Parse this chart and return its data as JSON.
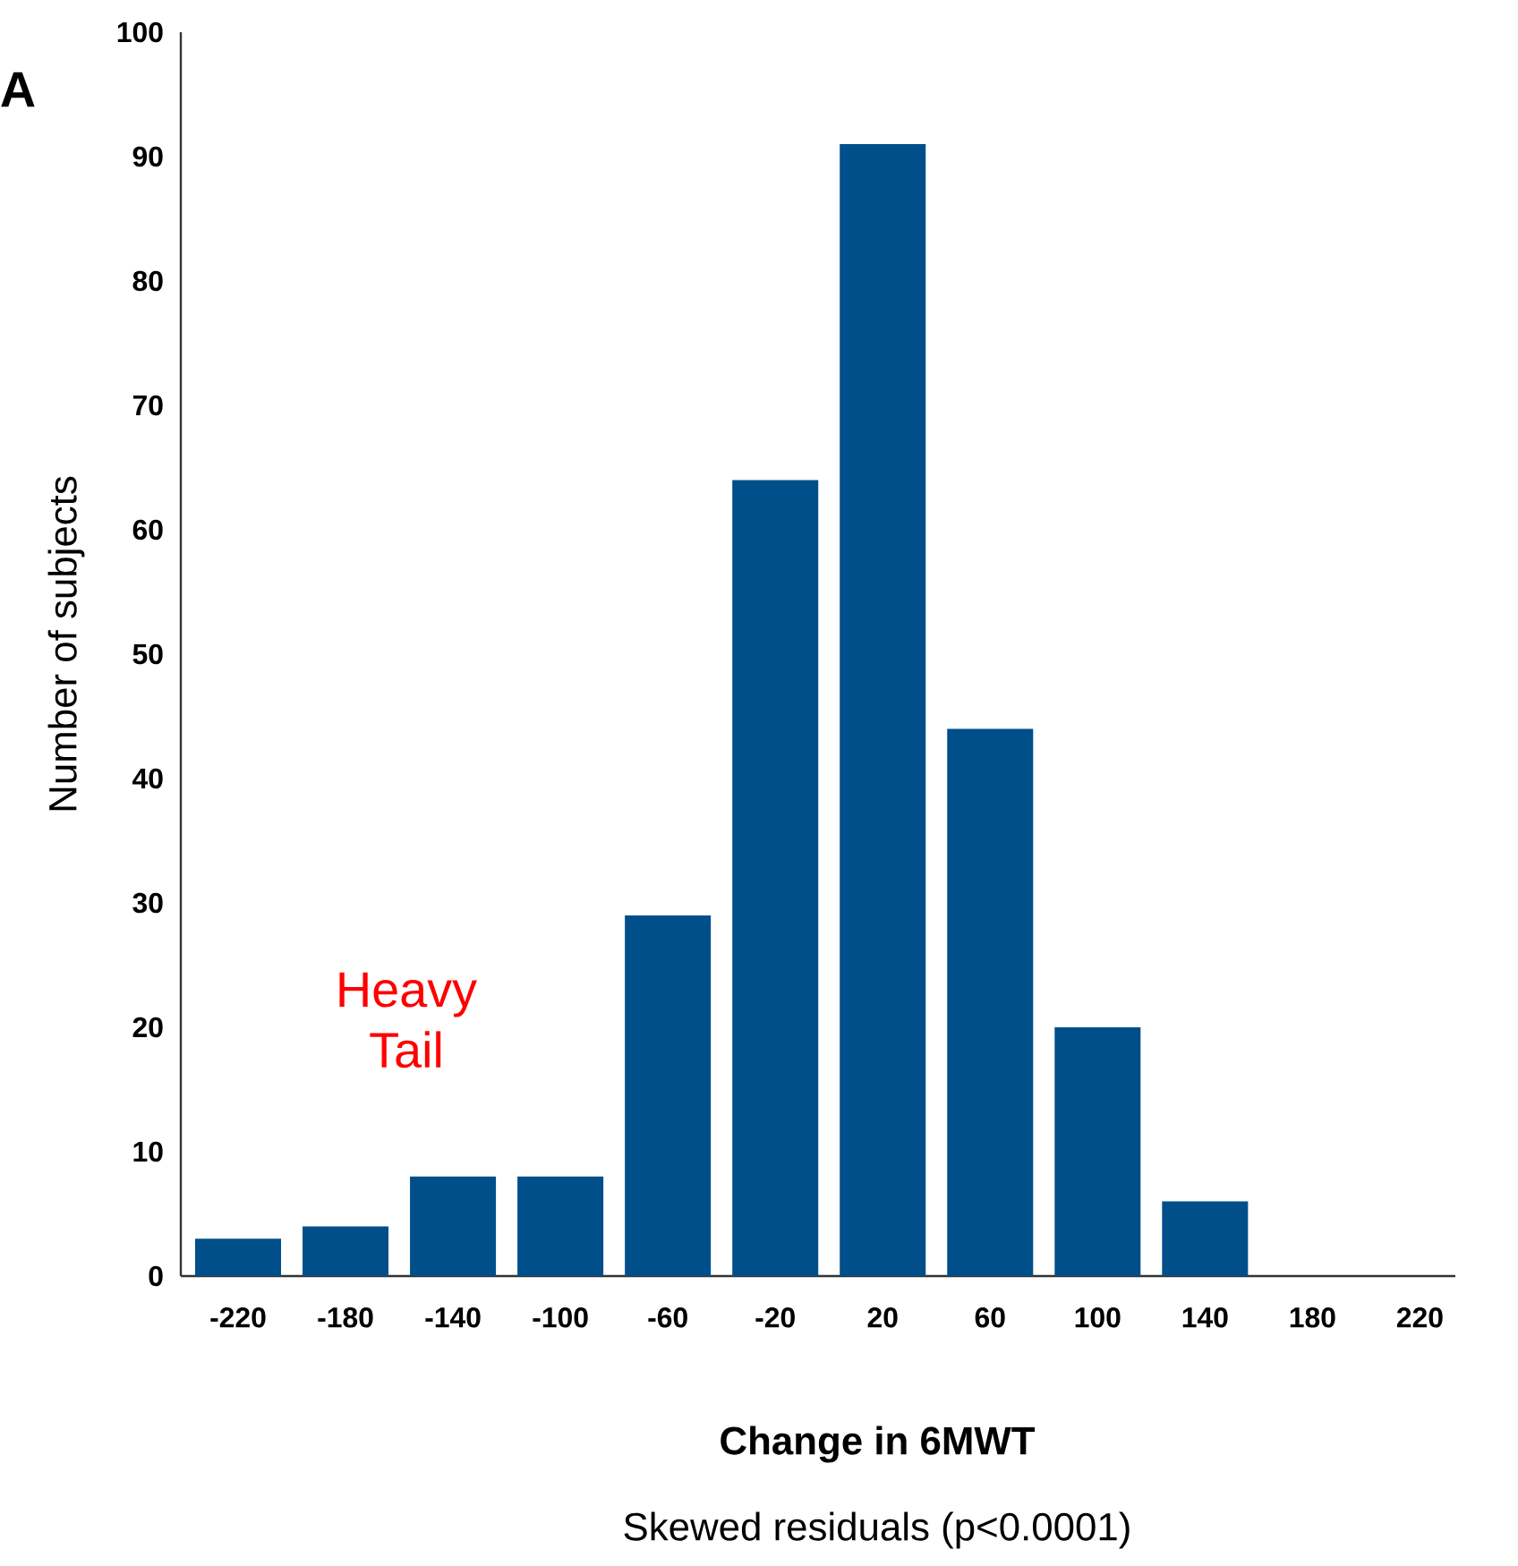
{
  "chart_data": {
    "type": "bar",
    "categories": [
      "-220",
      "-180",
      "-140",
      "-100",
      "-60",
      "-20",
      "20",
      "60",
      "100",
      "140",
      "180",
      "220"
    ],
    "values": [
      3,
      4,
      8,
      8,
      29,
      64,
      91,
      44,
      20,
      6,
      0,
      0
    ],
    "color": "#004f8b",
    "xlabel": "Change in 6MWT",
    "ylabel": "Number of subjects",
    "ylim": [
      0,
      100
    ],
    "yticks": [
      0,
      10,
      20,
      30,
      40,
      50,
      60,
      70,
      80,
      90,
      100
    ],
    "annotations": [
      "A",
      "Heavy Tail",
      "Skewed residuals (p<0.0001)"
    ]
  }
}
